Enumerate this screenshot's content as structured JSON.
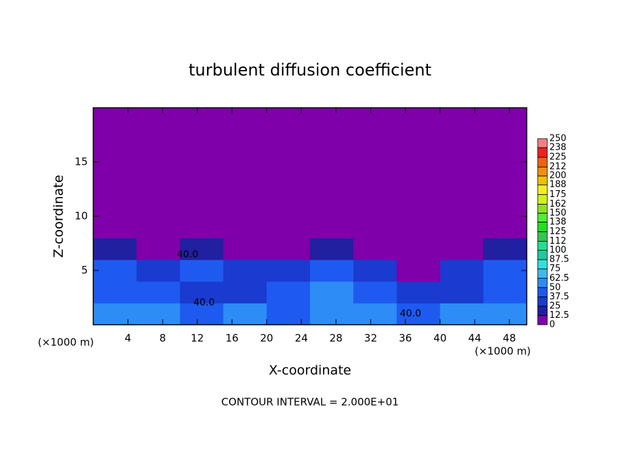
{
  "chart_data": {
    "type": "heatmap",
    "title": "turbulent diffusion coefficient",
    "x_label": "X-coordinate",
    "y_label": "Z-coordinate",
    "x_unit": "(×1000 m)",
    "y_unit": "(×1000 m)",
    "footer": "CONTOUR INTERVAL = 2.000E+01",
    "contour_labels": [
      "40.0",
      "40.0",
      "40.0"
    ],
    "xlim": [
      0,
      50
    ],
    "xticks": [
      4,
      8,
      12,
      16,
      20,
      24,
      28,
      32,
      36,
      40,
      44,
      48
    ],
    "ylim": [
      0,
      20
    ],
    "yticks": [
      5,
      10,
      15
    ],
    "x_edges": [
      0,
      5,
      10,
      15,
      20,
      25,
      30,
      35,
      40,
      45,
      50
    ],
    "y_edges": [
      0,
      2,
      4,
      6,
      8,
      10,
      12,
      14,
      16,
      18,
      20
    ],
    "z": [
      [
        55,
        50,
        45,
        55,
        45,
        55,
        50,
        45,
        50,
        55
      ],
      [
        45,
        40,
        35,
        30,
        40,
        50,
        40,
        35,
        30,
        40
      ],
      [
        40,
        35,
        40,
        30,
        35,
        40,
        35,
        10,
        30,
        40
      ],
      [
        15,
        10,
        20,
        0,
        10,
        20,
        5,
        0,
        0,
        15
      ],
      [
        0,
        0,
        0,
        0,
        0,
        5,
        0,
        0,
        0,
        0
      ],
      [
        0,
        0,
        0,
        0,
        0,
        0,
        0,
        0,
        0,
        0
      ],
      [
        0,
        0,
        0,
        0,
        0,
        0,
        0,
        0,
        0,
        0
      ],
      [
        0,
        0,
        0,
        0,
        0,
        0,
        0,
        0,
        0,
        0
      ],
      [
        0,
        0,
        0,
        0,
        0,
        0,
        0,
        0,
        0,
        0
      ],
      [
        0,
        0,
        0,
        0,
        0,
        0,
        0,
        0,
        0,
        0
      ]
    ],
    "colorbar": {
      "levels": [
        0,
        12.5,
        25,
        37.5,
        50,
        62.5,
        75,
        87.5,
        100,
        112,
        125,
        138,
        150,
        162,
        175,
        188,
        200,
        212,
        225,
        238,
        250
      ],
      "colors": [
        "#7f00aa",
        "#2020a0",
        "#1a3ad0",
        "#1e5af0",
        "#2d8cf5",
        "#40b8f0",
        "#30e0e0",
        "#20c8a0",
        "#20e090",
        "#30c850",
        "#20e020",
        "#50f030",
        "#90e020",
        "#d0f020",
        "#f0f020",
        "#f0c000",
        "#f09010",
        "#f06010",
        "#f02020",
        "#f08080"
      ]
    }
  }
}
